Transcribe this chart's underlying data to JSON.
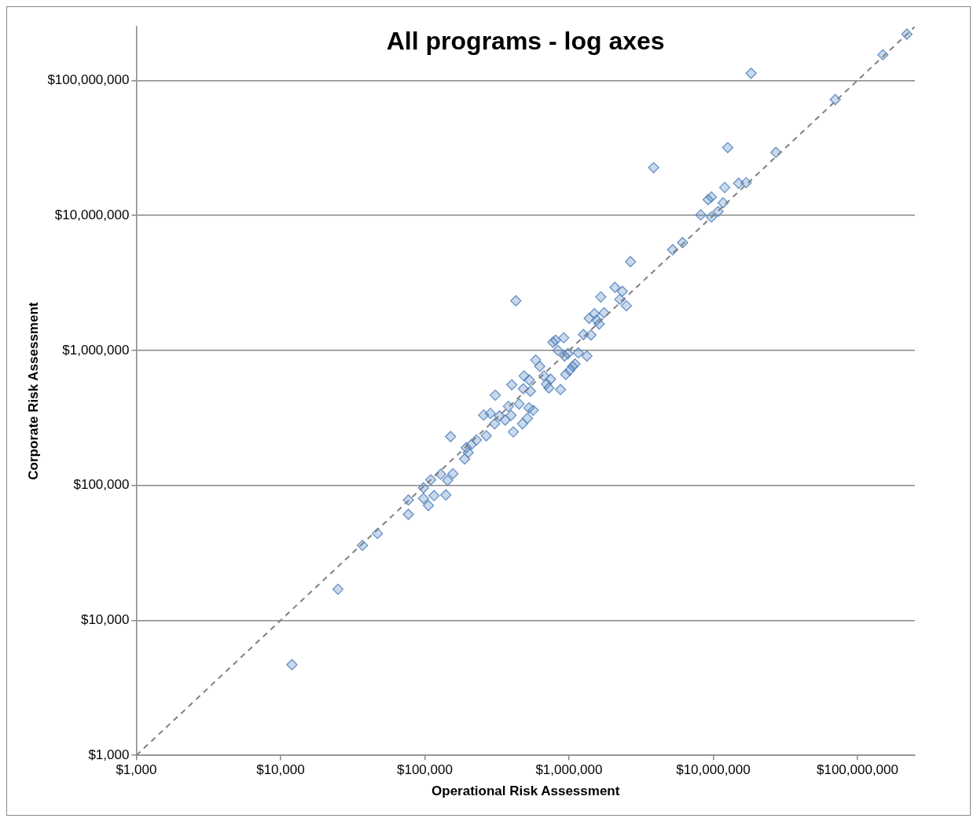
{
  "chart_data": {
    "type": "scatter",
    "title": "All programs - log axes",
    "xlabel": "Operational Risk Assessment",
    "ylabel": "Corporate Risk Assessment",
    "log": "xy",
    "grid": "y",
    "legend": false,
    "marker": "diamond",
    "xlim": [
      1000,
      250000000
    ],
    "ylim": [
      1000,
      250000000
    ],
    "xticks": [
      {
        "value": 1000,
        "label": "$1,000"
      },
      {
        "value": 10000,
        "label": "$10,000"
      },
      {
        "value": 100000,
        "label": "$100,000"
      },
      {
        "value": 1000000,
        "label": "$1,000,000"
      },
      {
        "value": 10000000,
        "label": "$10,000,000"
      },
      {
        "value": 100000000,
        "label": "$100,000,000"
      }
    ],
    "yticks": [
      {
        "value": 1000,
        "label": "$1,000"
      },
      {
        "value": 10000,
        "label": "$10,000"
      },
      {
        "value": 100000,
        "label": "$100,000"
      },
      {
        "value": 1000000,
        "label": "$1,000,000"
      },
      {
        "value": 10000000,
        "label": "$10,000,000"
      },
      {
        "value": 100000000,
        "label": "$100,000,000"
      }
    ],
    "series": [
      {
        "color": "#4f81bd",
        "x": [
          12000,
          25000,
          37000,
          47000,
          77000,
          77000,
          98000,
          98000,
          106000,
          116000,
          110000,
          140000,
          144000,
          129000,
          157000,
          151000,
          189000,
          194000,
          200000,
          228000,
          210000,
          267000,
          256000,
          285000,
          308000,
          305000,
          329000,
          361000,
          396000,
          411000,
          380000,
          401000,
          451000,
          482000,
          488000,
          476000,
          515000,
          528000,
          540000,
          530000,
          565000,
          428000,
          587000,
          627000,
          670000,
          697000,
          745000,
          725000,
          774000,
          806000,
          838000,
          873000,
          919000,
          932000,
          982000,
          950000,
          1010000,
          1060000,
          1100000,
          1160000,
          1260000,
          1330000,
          1420000,
          1380000,
          1500000,
          1560000,
          1620000,
          1750000,
          1660000,
          2080000,
          2250000,
          2340000,
          2500000,
          2670000,
          3860000,
          5230000,
          6130000,
          8190000,
          9210000,
          9710000,
          9710000,
          10800000,
          11700000,
          12000000,
          12600000,
          15000000,
          16900000,
          18300000,
          27200000,
          70100000,
          150000000,
          220000000
        ],
        "values": [
          4700,
          17000,
          36000,
          44000,
          61000,
          78000,
          96000,
          80000,
          71000,
          84000,
          110000,
          85000,
          109000,
          121000,
          122000,
          230000,
          157000,
          190000,
          175000,
          217000,
          200000,
          233000,
          332000,
          341000,
          466000,
          286000,
          327000,
          305000,
          330000,
          249000,
          385000,
          557000,
          401000,
          520000,
          647000,
          286000,
          314000,
          375000,
          499000,
          604000,
          360000,
          2330000,
          849000,
          762000,
          647000,
          564000,
          612000,
          527000,
          1150000,
          1190000,
          1000000,
          513000,
          1240000,
          909000,
          946000,
          664000,
          711000,
          762000,
          793000,
          960000,
          1310000,
          909000,
          1300000,
          1730000,
          1870000,
          1680000,
          1570000,
          1900000,
          2490000,
          2930000,
          2390000,
          2740000,
          2140000,
          4540000,
          22600000,
          5570000,
          6290000,
          10100000,
          13100000,
          13700000,
          9730000,
          10700000,
          12400000,
          16100000,
          31800000,
          17300000,
          17500000,
          113000000,
          29300000,
          72100000,
          155000000,
          220000000
        ]
      },
      {
        "type": "line",
        "color": "#808080",
        "line_style": "dashed",
        "marker": "none",
        "x": [
          1000,
          250000000
        ],
        "values": [
          1000,
          250000000
        ]
      }
    ]
  }
}
